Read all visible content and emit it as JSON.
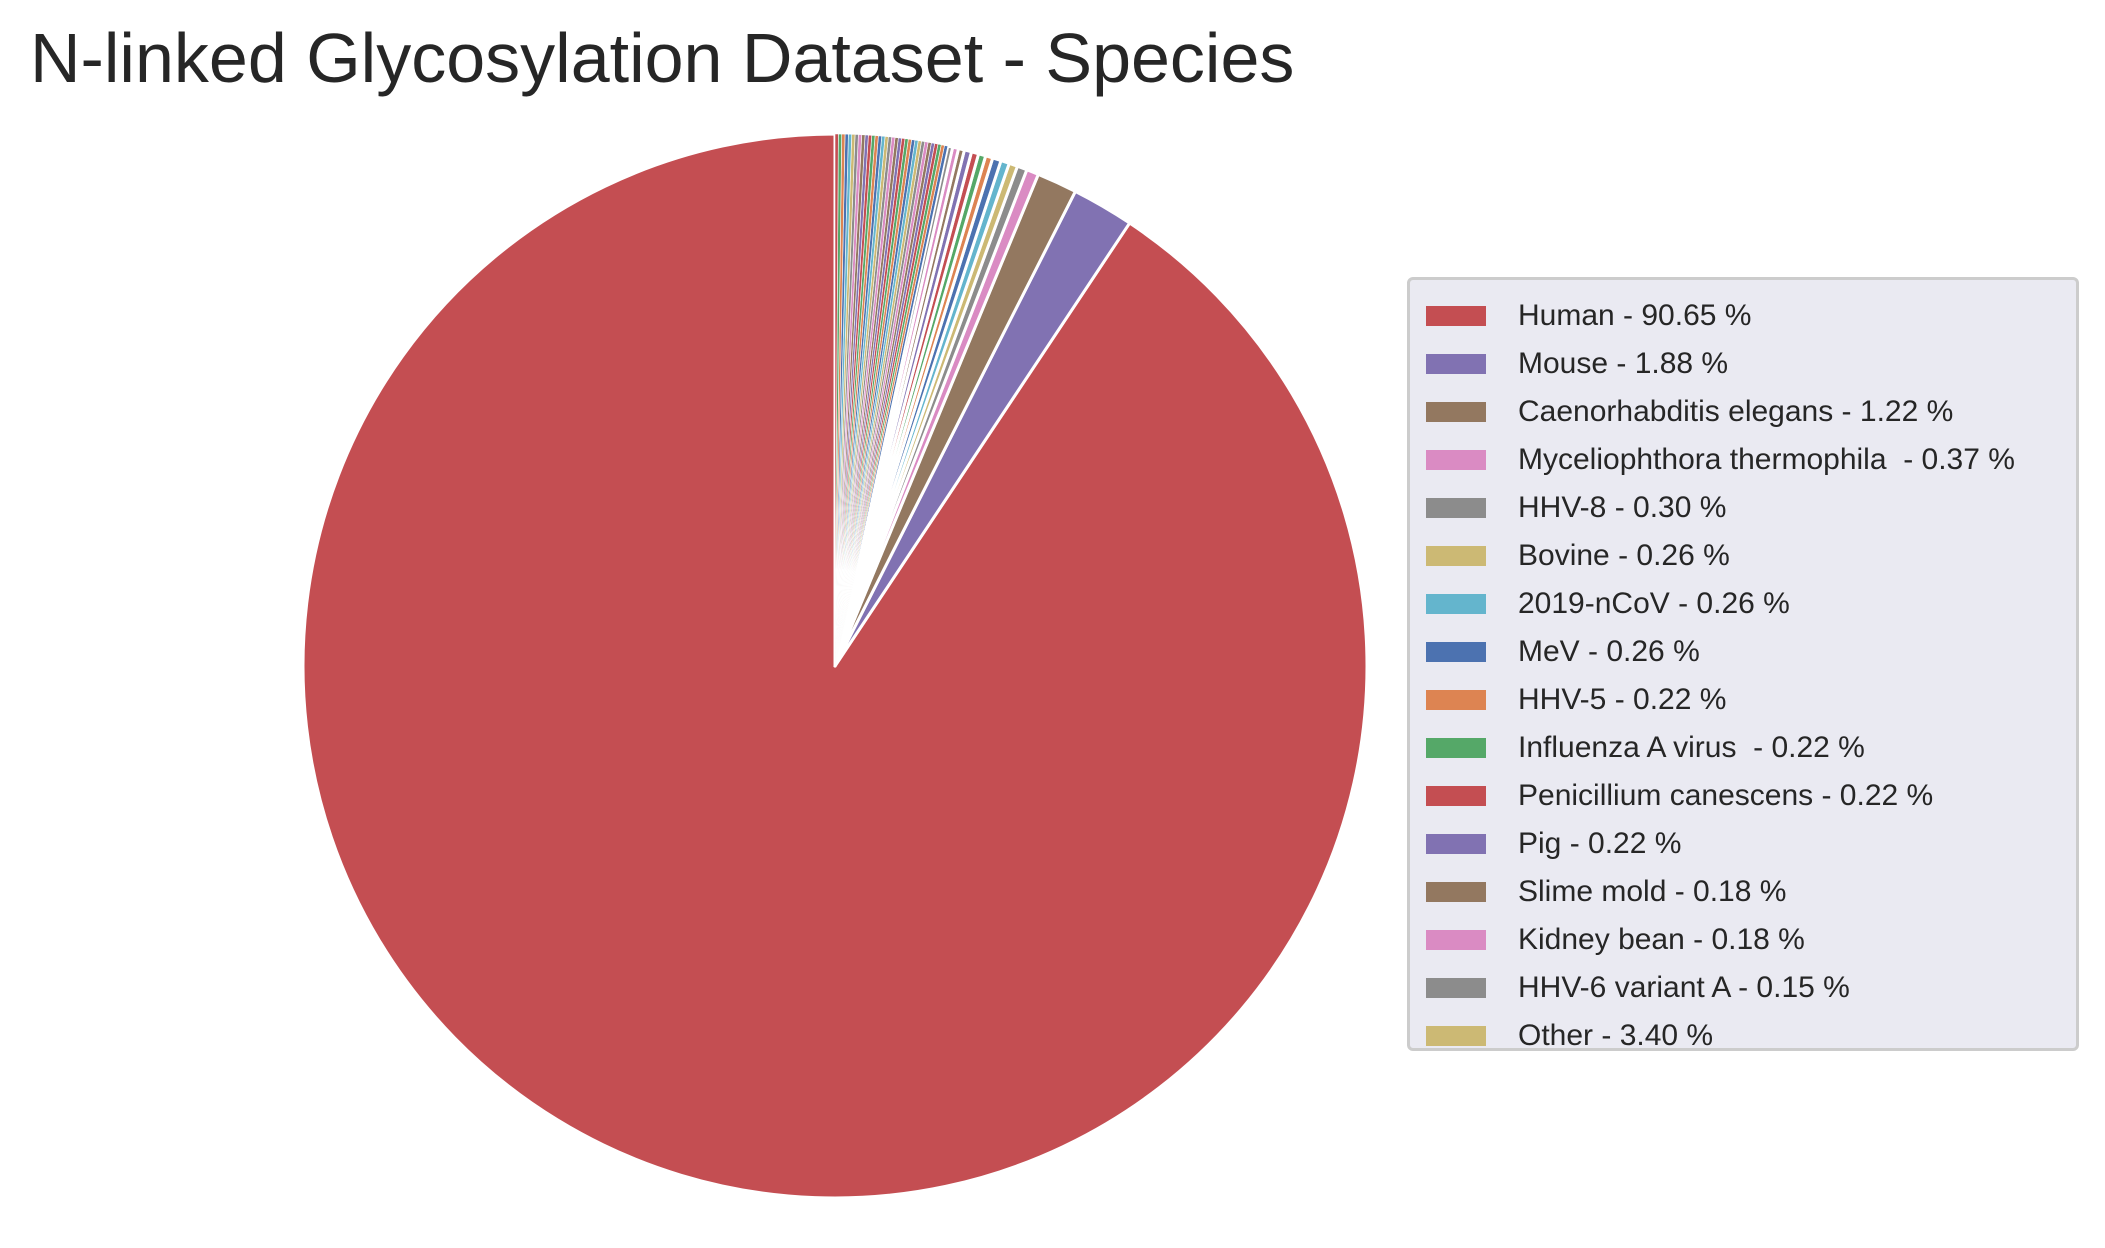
{
  "chart_data": {
    "type": "pie",
    "title": "N-linked Glycosylation Dataset - Species",
    "start_angle": "top, clockwise",
    "legend_position": "right",
    "slices": [
      {
        "label": "Human - 90.65 %",
        "value": 90.65,
        "color": "#c44e52"
      },
      {
        "label": "Mouse - 1.88 %",
        "value": 1.88,
        "color": "#8172b2"
      },
      {
        "label": "Caenorhabditis elegans - 1.22 %",
        "value": 1.22,
        "color": "#937860"
      },
      {
        "label": "Myceliophthora thermophila  - 0.37 %",
        "value": 0.37,
        "color": "#da8bc3"
      },
      {
        "label": "HHV-8 - 0.30 %",
        "value": 0.3,
        "color": "#8c8c8c"
      },
      {
        "label": "Bovine - 0.26 %",
        "value": 0.26,
        "color": "#ccb974"
      },
      {
        "label": "2019-nCoV - 0.26 %",
        "value": 0.26,
        "color": "#64b5cd"
      },
      {
        "label": "MeV - 0.26 %",
        "value": 0.26,
        "color": "#4c72b0"
      },
      {
        "label": "HHV-5 - 0.22 %",
        "value": 0.22,
        "color": "#dd8452"
      },
      {
        "label": "Influenza A virus  - 0.22 %",
        "value": 0.22,
        "color": "#55a868"
      },
      {
        "label": "Penicillium canescens - 0.22 %",
        "value": 0.22,
        "color": "#c44e52"
      },
      {
        "label": "Pig - 0.22 %",
        "value": 0.22,
        "color": "#8172b2"
      },
      {
        "label": "Slime mold - 0.18 %",
        "value": 0.18,
        "color": "#937860"
      },
      {
        "label": "Kidney bean - 0.18 %",
        "value": 0.18,
        "color": "#da8bc3"
      },
      {
        "label": "HHV-6 variant A - 0.15 %",
        "value": 0.15,
        "color": "#8c8c8c"
      },
      {
        "label": "Other - 3.40 %",
        "value": 3.4,
        "color": "#ccb974"
      }
    ],
    "other_breakdown_colors": [
      "#4c72b0",
      "#dd8452",
      "#55a868",
      "#c44e52",
      "#8172b2",
      "#937860",
      "#da8bc3",
      "#8c8c8c",
      "#ccb974",
      "#64b5cd"
    ]
  }
}
